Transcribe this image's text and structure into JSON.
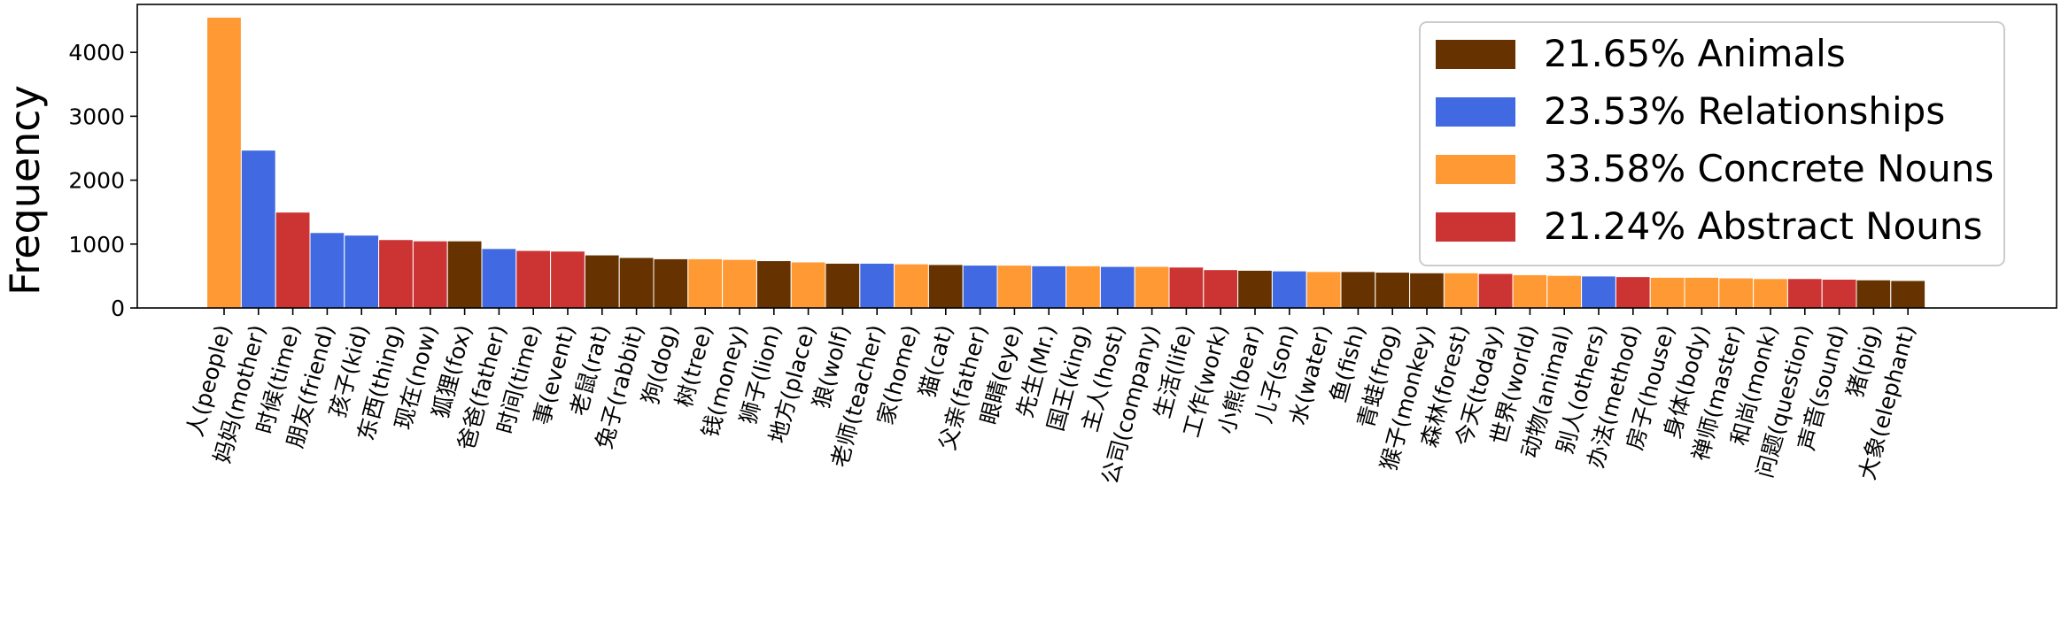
{
  "chart_data": {
    "type": "bar",
    "title": "",
    "xlabel": "",
    "ylabel": "Frequency",
    "ylim": [
      0,
      4750
    ],
    "yticks": [
      0,
      1000,
      2000,
      3000,
      4000
    ],
    "grid": false,
    "legend_position": "top-right",
    "groups": [
      {
        "name": "Animals",
        "label": "21.65% Animals",
        "color": "#663300"
      },
      {
        "name": "Relationships",
        "label": "23.53% Relationships",
        "color": "#4169E1"
      },
      {
        "name": "Concrete Nouns",
        "label": "33.58% Concrete Nouns",
        "color": "#FF9933"
      },
      {
        "name": "Abstract Nouns",
        "label": "21.24% Abstract Nouns",
        "color": "#CC3333"
      }
    ],
    "categories": [
      "人(people)",
      "妈妈(mother)",
      "时候(time)",
      "朋友(friend)",
      "孩子(kid)",
      "东西(thing)",
      "现在(now)",
      "狐狸(fox)",
      "爸爸(father)",
      "时间(time)",
      "事(event)",
      "老鼠(rat)",
      "兔子(rabbit)",
      "狗(dog)",
      "树(tree)",
      "钱(money)",
      "狮子(lion)",
      "地方(place)",
      "狼(wolf)",
      "老师(teacher)",
      "家(home)",
      "猫(cat)",
      "父亲(father)",
      "眼睛(eye)",
      "先生(Mr.)",
      "国王(king)",
      "主人(host)",
      "公司(company)",
      "生活(life)",
      "工作(work)",
      "小熊(bear)",
      "儿子(son)",
      "水(water)",
      "鱼(fish)",
      "青蛙(frog)",
      "猴子(monkey)",
      "森林(forest)",
      "今天(today)",
      "世界(world)",
      "动物(animal)",
      "别人(others)",
      "办法(method)",
      "房子(house)",
      "身体(body)",
      "禅师(master)",
      "和尚(monk)",
      "问题(question)",
      "声音(sound)",
      "猪(pig)",
      "大象(elephant)"
    ],
    "values": [
      4550,
      2470,
      1500,
      1180,
      1140,
      1070,
      1050,
      1050,
      930,
      900,
      890,
      830,
      790,
      770,
      770,
      760,
      740,
      720,
      700,
      700,
      690,
      680,
      670,
      670,
      660,
      660,
      650,
      650,
      640,
      600,
      590,
      580,
      570,
      570,
      560,
      550,
      550,
      540,
      520,
      510,
      500,
      490,
      480,
      480,
      470,
      460,
      460,
      450,
      440,
      430
    ],
    "group_of": [
      "Concrete Nouns",
      "Relationships",
      "Abstract Nouns",
      "Relationships",
      "Relationships",
      "Abstract Nouns",
      "Abstract Nouns",
      "Animals",
      "Relationships",
      "Abstract Nouns",
      "Abstract Nouns",
      "Animals",
      "Animals",
      "Animals",
      "Concrete Nouns",
      "Concrete Nouns",
      "Animals",
      "Concrete Nouns",
      "Animals",
      "Relationships",
      "Concrete Nouns",
      "Animals",
      "Relationships",
      "Concrete Nouns",
      "Relationships",
      "Concrete Nouns",
      "Relationships",
      "Concrete Nouns",
      "Abstract Nouns",
      "Abstract Nouns",
      "Animals",
      "Relationships",
      "Concrete Nouns",
      "Animals",
      "Animals",
      "Animals",
      "Concrete Nouns",
      "Abstract Nouns",
      "Concrete Nouns",
      "Concrete Nouns",
      "Relationships",
      "Abstract Nouns",
      "Concrete Nouns",
      "Concrete Nouns",
      "Concrete Nouns",
      "Concrete Nouns",
      "Abstract Nouns",
      "Abstract Nouns",
      "Animals",
      "Animals"
    ]
  }
}
